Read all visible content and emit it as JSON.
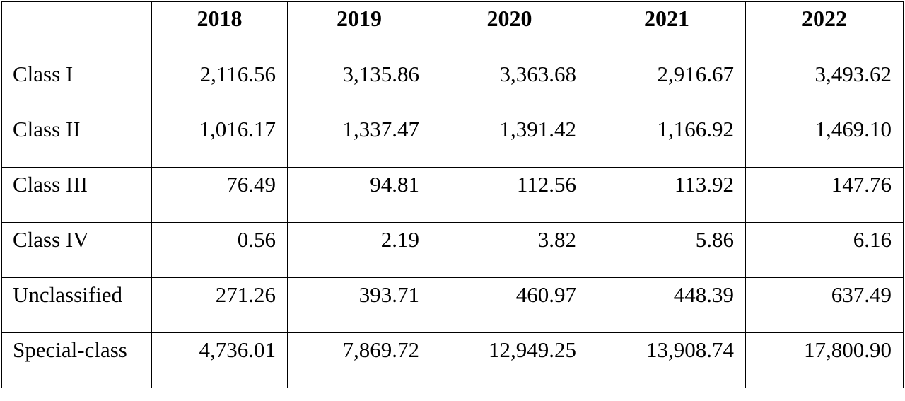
{
  "chart_data": {
    "type": "table",
    "columns": [
      "",
      "2018",
      "2019",
      "2020",
      "2021",
      "2022"
    ],
    "rows": [
      {
        "label": "Class I",
        "values": [
          "2,116.56",
          "3,135.86",
          "3,363.68",
          "2,916.67",
          "3,493.62"
        ]
      },
      {
        "label": "Class II",
        "values": [
          "1,016.17",
          "1,337.47",
          "1,391.42",
          "1,166.92",
          "1,469.10"
        ]
      },
      {
        "label": "Class III",
        "values": [
          "76.49",
          "94.81",
          "112.56",
          "113.92",
          "147.76"
        ]
      },
      {
        "label": "Class IV",
        "values": [
          "0.56",
          "2.19",
          "3.82",
          "5.86",
          "6.16"
        ]
      },
      {
        "label": "Unclassified",
        "values": [
          "271.26",
          "393.71",
          "460.97",
          "448.39",
          "637.49"
        ]
      },
      {
        "label": "Special-class",
        "values": [
          "4,736.01",
          "7,869.72",
          "12,949.25",
          "13,908.74",
          "17,800.90"
        ]
      }
    ]
  }
}
